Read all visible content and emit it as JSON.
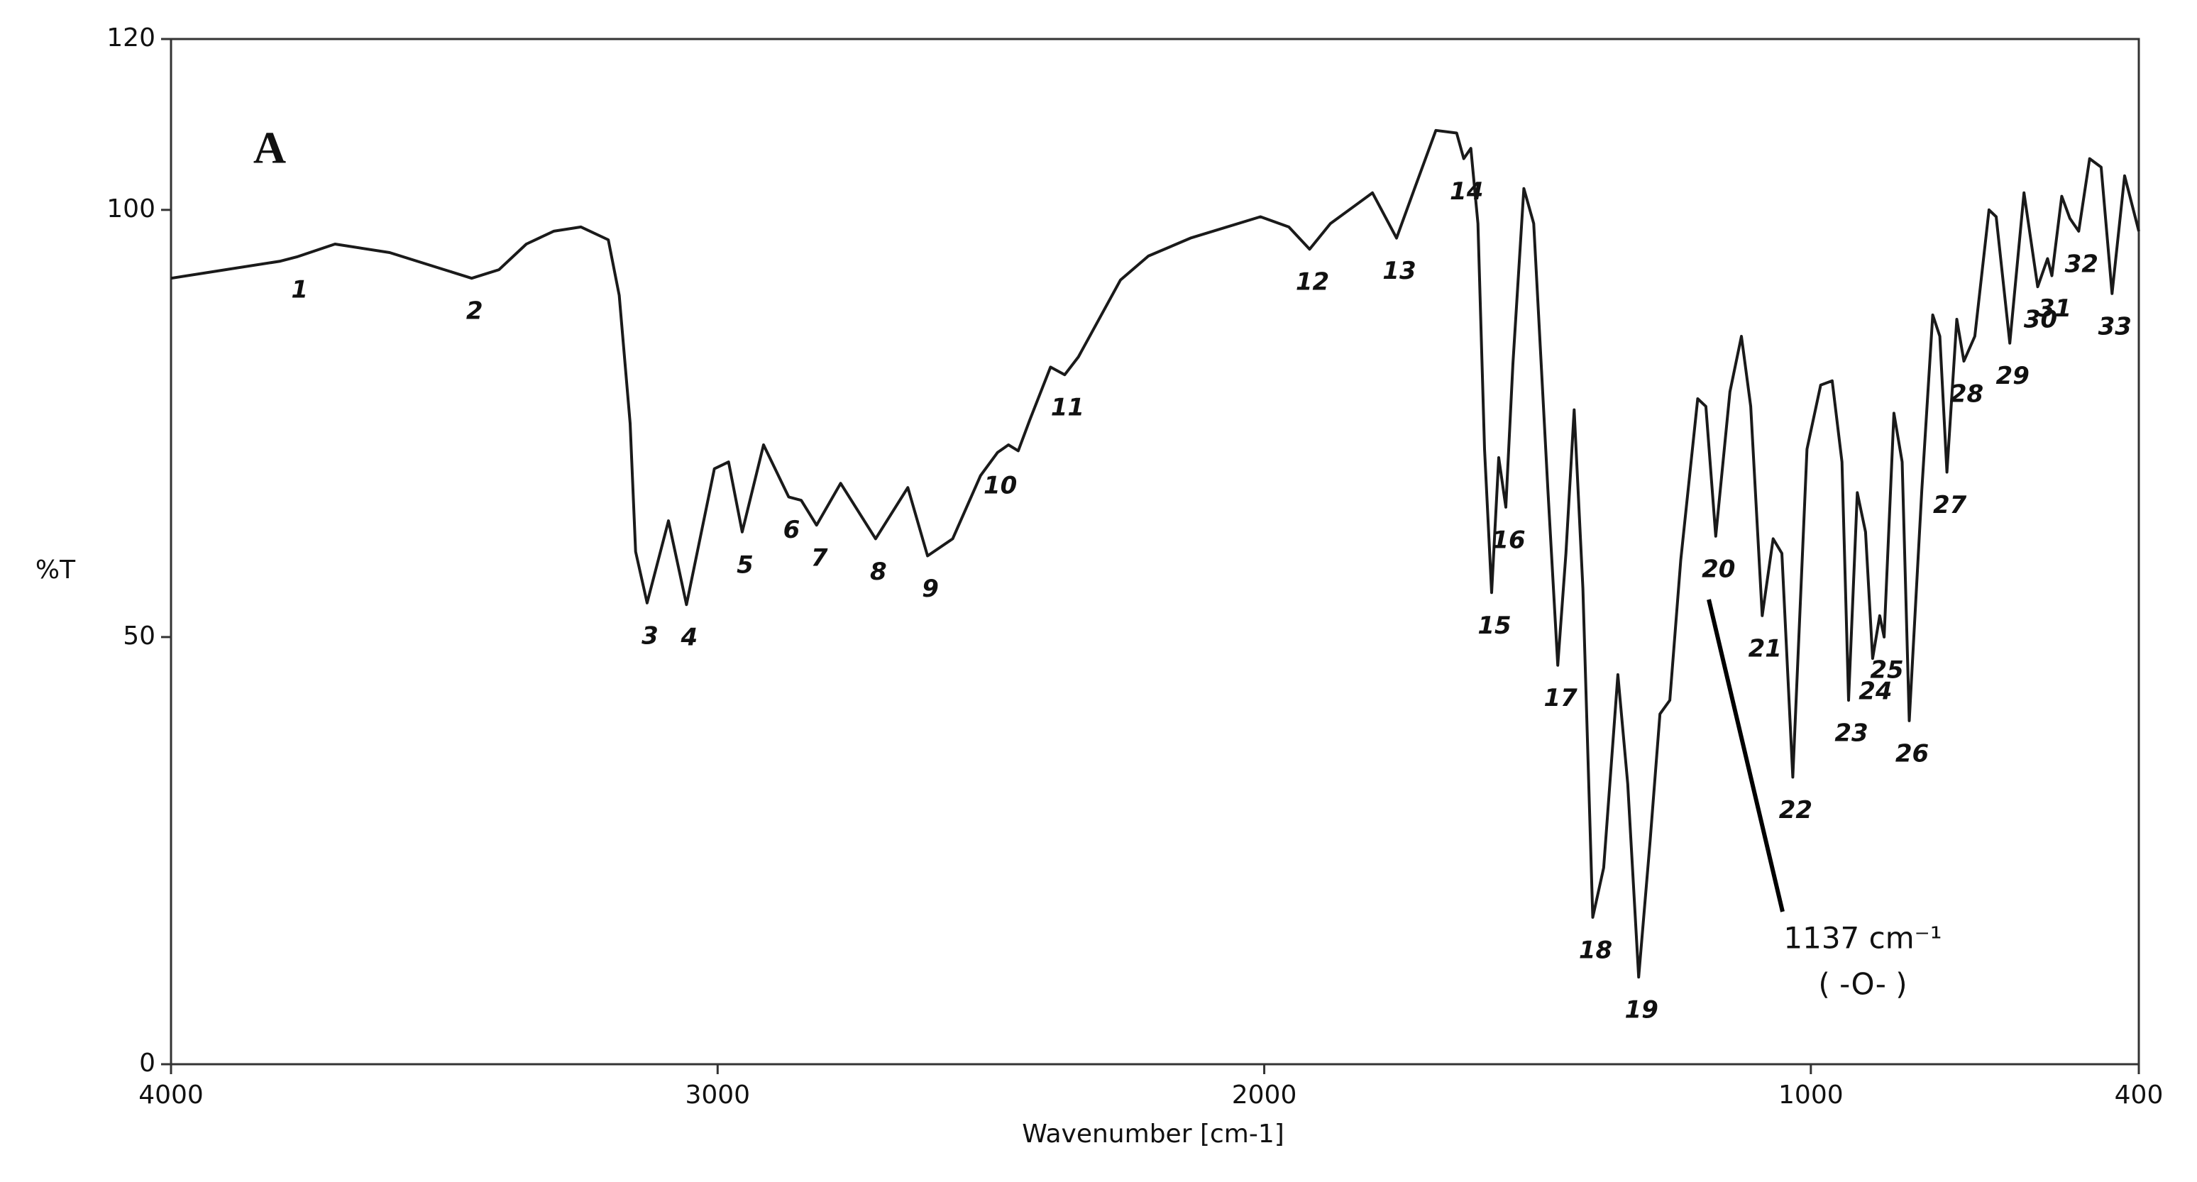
{
  "chart_data": {
    "type": "line",
    "panel_label": "A",
    "x_label": "Wavenumber [cm-1]",
    "y_label": "%T",
    "xlim": [
      4000,
      400
    ],
    "xticks": [
      4000,
      3000,
      2000,
      1000,
      400
    ],
    "ylim": [
      0,
      120
    ],
    "yticks": [
      0,
      50,
      100,
      120
    ],
    "grid": false,
    "color": "#1a1a1a",
    "x": [
      4000,
      3900,
      3800,
      3770,
      3700,
      3600,
      3500,
      3450,
      3400,
      3350,
      3300,
      3250,
      3200,
      3180,
      3160,
      3150,
      3129,
      3090,
      3057,
      3006,
      2980,
      2955,
      2916,
      2870,
      2847,
      2819,
      2775,
      2711,
      2652,
      2616,
      2570,
      2519,
      2488,
      2468,
      2450,
      2429,
      2391,
      2365,
      2340,
      2263,
      2212,
      2135,
      2007,
      1955,
      1917,
      1879,
      1802,
      1758,
      1725,
      1686,
      1648,
      1635,
      1622,
      1609,
      1597,
      1584,
      1571,
      1558,
      1545,
      1525,
      1507,
      1481,
      1463,
      1448,
      1433,
      1417,
      1399,
      1379,
      1353,
      1335,
      1315,
      1294,
      1276,
      1258,
      1238,
      1207,
      1192,
      1174,
      1148,
      1127,
      1110,
      1089,
      1069,
      1053,
      1033,
      1007,
      982,
      961,
      943,
      931,
      915,
      900,
      887,
      874,
      866,
      848,
      833,
      820,
      797,
      777,
      764,
      751,
      733,
      720,
      700,
      674,
      661,
      636,
      610,
      585,
      567,
      559,
      541,
      526,
      510,
      490,
      469,
      449,
      426,
      400
    ],
    "values": [
      92,
      93,
      94,
      94.5,
      96,
      95,
      93,
      92,
      93,
      96,
      97.5,
      98,
      96.5,
      90,
      75,
      60,
      54,
      63.6,
      53.8,
      69.7,
      70.5,
      62.3,
      72.5,
      66.4,
      66,
      63.1,
      68,
      61.5,
      67.5,
      59.5,
      61.5,
      68.9,
      71.6,
      72.5,
      71.8,
      75.4,
      81.6,
      80.7,
      82.8,
      91.8,
      94.6,
      96.7,
      99.2,
      98,
      95.4,
      98.4,
      102,
      96.7,
      102.5,
      109.3,
      109,
      106,
      107.2,
      98.4,
      72,
      55.2,
      71,
      65.2,
      82,
      102.5,
      98.4,
      67.2,
      46.7,
      59.8,
      76.6,
      55.7,
      17.2,
      23,
      45.6,
      32.8,
      10.2,
      26.2,
      41,
      42.6,
      59,
      77.9,
      77,
      61.8,
      78.7,
      85.2,
      77,
      52.5,
      61.5,
      59.8,
      33.6,
      72,
      79.5,
      80,
      70.5,
      42.6,
      66.9,
      62.3,
      47.5,
      52.5,
      50,
      76.2,
      70.5,
      40.2,
      67.2,
      87.7,
      85.2,
      69.3,
      87.2,
      82.3,
      85.2,
      100,
      99.2,
      84.4,
      102,
      91,
      94.3,
      92.3,
      101.6,
      99,
      97.5,
      106,
      105,
      90.2,
      104,
      97.5
    ],
    "peaks": [
      {
        "label": "1",
        "x": 3770,
        "y": 94.5
      },
      {
        "label": "2",
        "x": 3450,
        "y": 92
      },
      {
        "label": "3",
        "x": 3129,
        "y": 54
      },
      {
        "label": "4",
        "x": 3057,
        "y": 53.8
      },
      {
        "label": "5",
        "x": 2955,
        "y": 62.3
      },
      {
        "label": "6",
        "x": 2870,
        "y": 66.4
      },
      {
        "label": "7",
        "x": 2819,
        "y": 63.1
      },
      {
        "label": "8",
        "x": 2711,
        "y": 61.5
      },
      {
        "label": "9",
        "x": 2616,
        "y": 59.5
      },
      {
        "label": "10",
        "x": 2488,
        "y": 71.6
      },
      {
        "label": "11",
        "x": 2365,
        "y": 80.7
      },
      {
        "label": "12",
        "x": 1917,
        "y": 95.4
      },
      {
        "label": "13",
        "x": 1758,
        "y": 96.7
      },
      {
        "label": "14",
        "x": 1635,
        "y": 106
      },
      {
        "label": "15",
        "x": 1584,
        "y": 55.2
      },
      {
        "label": "16",
        "x": 1558,
        "y": 65.2
      },
      {
        "label": "17",
        "x": 1463,
        "y": 46.7
      },
      {
        "label": "18",
        "x": 1399,
        "y": 17.2
      },
      {
        "label": "19",
        "x": 1315,
        "y": 10.2
      },
      {
        "label": "20",
        "x": 1174,
        "y": 61.8
      },
      {
        "label": "21",
        "x": 1089,
        "y": 52.5
      },
      {
        "label": "22",
        "x": 1033,
        "y": 33.6
      },
      {
        "label": "23",
        "x": 931,
        "y": 42.6
      },
      {
        "label": "24",
        "x": 887,
        "y": 47.5
      },
      {
        "label": "25",
        "x": 866,
        "y": 50
      },
      {
        "label": "26",
        "x": 820,
        "y": 40.2
      },
      {
        "label": "27",
        "x": 751,
        "y": 69.3
      },
      {
        "label": "28",
        "x": 720,
        "y": 82.3
      },
      {
        "label": "29",
        "x": 636,
        "y": 84.4
      },
      {
        "label": "30",
        "x": 585,
        "y": 91
      },
      {
        "label": "31",
        "x": 559,
        "y": 92.3
      },
      {
        "label": "32",
        "x": 510,
        "y": 97.5
      },
      {
        "label": "33",
        "x": 449,
        "y": 90.2
      }
    ],
    "annotation": [
      "1137 cm⁻¹",
      "( -O- )"
    ]
  }
}
